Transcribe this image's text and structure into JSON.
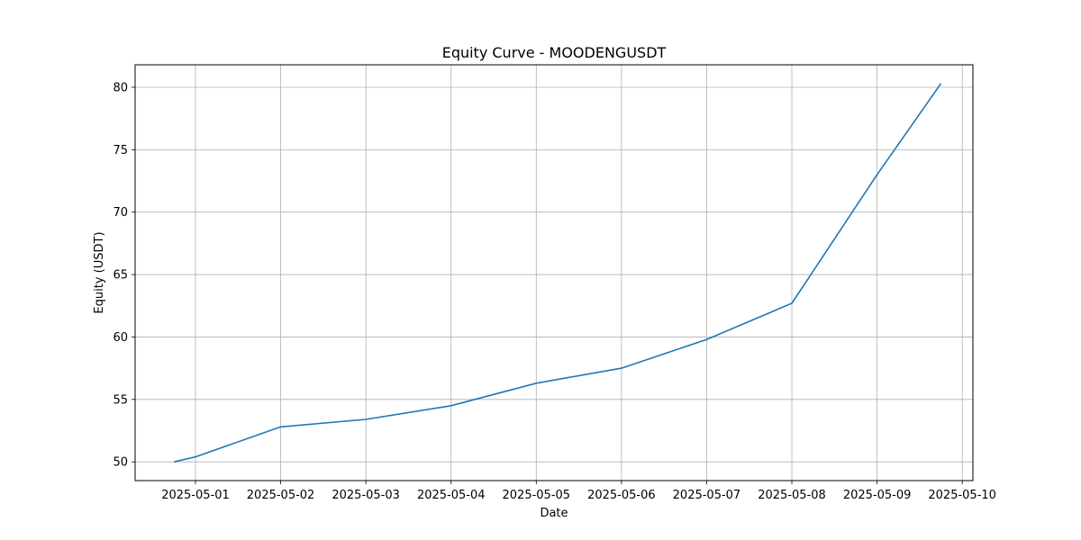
{
  "chart_data": {
    "type": "line",
    "title": "Equity Curve - MOODENGUSDT",
    "xlabel": "Date",
    "ylabel": "Equity (USDT)",
    "grid": true,
    "x_ticks": [
      "2025-05-01",
      "2025-05-02",
      "2025-05-03",
      "2025-05-04",
      "2025-05-05",
      "2025-05-06",
      "2025-05-07",
      "2025-05-08",
      "2025-05-09",
      "2025-05-10"
    ],
    "y_ticks": [
      50,
      55,
      60,
      65,
      70,
      75,
      80
    ],
    "xlim": [
      "2025-04-30 07:00",
      "2025-05-10 03:00"
    ],
    "ylim": [
      48.5,
      81.8
    ],
    "line_color": "#1f77b4",
    "grid_color": "#b0b0b0",
    "points": [
      {
        "x": "2025-04-30 18:00",
        "y": 50.0
      },
      {
        "x": "2025-05-01 00:00",
        "y": 50.4
      },
      {
        "x": "2025-05-02 00:00",
        "y": 52.8
      },
      {
        "x": "2025-05-03 00:00",
        "y": 53.4
      },
      {
        "x": "2025-05-04 00:00",
        "y": 54.5
      },
      {
        "x": "2025-05-05 00:00",
        "y": 56.3
      },
      {
        "x": "2025-05-06 00:00",
        "y": 57.5
      },
      {
        "x": "2025-05-07 00:00",
        "y": 59.8
      },
      {
        "x": "2025-05-08 00:00",
        "y": 62.7
      },
      {
        "x": "2025-05-09 00:00",
        "y": 73.0
      },
      {
        "x": "2025-05-09 18:00",
        "y": 80.3
      }
    ]
  }
}
